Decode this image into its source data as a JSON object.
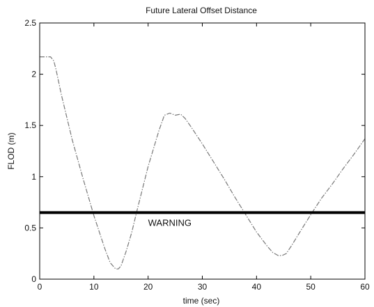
{
  "chart_data": {
    "type": "line",
    "title": "Future Lateral Offset Distance",
    "xlabel": "time (sec)",
    "ylabel": "FLOD (m)",
    "xlim": [
      0,
      60
    ],
    "ylim": [
      0,
      2.5
    ],
    "xticks": [
      0,
      10,
      20,
      30,
      40,
      50,
      60
    ],
    "xtick_labels": [
      "0",
      "10",
      "20",
      "30",
      "40",
      "50",
      "60"
    ],
    "yticks": [
      0,
      0.5,
      1,
      1.5,
      2,
      2.5
    ],
    "ytick_labels": [
      "0",
      "0.5",
      "1",
      "1.5",
      "2",
      "2.5"
    ],
    "grid": false,
    "series": [
      {
        "x": [
          0,
          1,
          2,
          2.6,
          3,
          4,
          6,
          8,
          10,
          12,
          13,
          14,
          14.5,
          15,
          16,
          17,
          18,
          20,
          22,
          23,
          24,
          25,
          26,
          26.8,
          28,
          30,
          32,
          34,
          36,
          38,
          40,
          42,
          43,
          44,
          44.7,
          45.5,
          46.5,
          48,
          50,
          52,
          54,
          56,
          58,
          60
        ],
        "y": [
          2.17,
          2.17,
          2.17,
          2.13,
          2.05,
          1.8,
          1.36,
          0.98,
          0.62,
          0.3,
          0.16,
          0.1,
          0.1,
          0.13,
          0.28,
          0.46,
          0.68,
          1.1,
          1.45,
          1.6,
          1.62,
          1.6,
          1.61,
          1.57,
          1.48,
          1.32,
          1.15,
          0.98,
          0.8,
          0.63,
          0.46,
          0.32,
          0.26,
          0.23,
          0.23,
          0.25,
          0.33,
          0.46,
          0.63,
          0.79,
          0.93,
          1.08,
          1.22,
          1.37
        ],
        "color": "#777777",
        "style": "dash-dot"
      }
    ],
    "threshold": {
      "y": 0.65,
      "label": "WARNING",
      "label_x": 24,
      "color": "#000000"
    }
  }
}
